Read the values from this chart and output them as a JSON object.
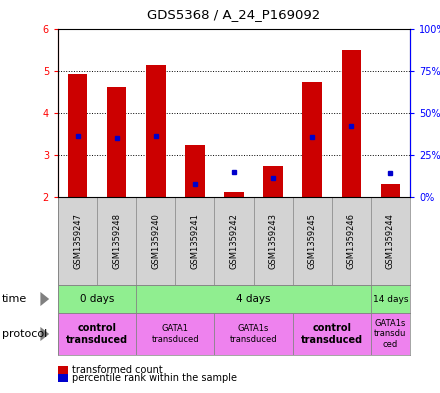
{
  "title": "GDS5368 / A_24_P169092",
  "samples": [
    "GSM1359247",
    "GSM1359248",
    "GSM1359240",
    "GSM1359241",
    "GSM1359242",
    "GSM1359243",
    "GSM1359245",
    "GSM1359246",
    "GSM1359244"
  ],
  "bar_bottoms": [
    2.0,
    2.0,
    2.0,
    2.0,
    2.0,
    2.0,
    2.0,
    2.0,
    2.0
  ],
  "bar_tops": [
    4.92,
    4.61,
    5.15,
    3.23,
    2.13,
    2.75,
    4.73,
    5.51,
    2.32
  ],
  "blue_dots": [
    3.45,
    3.4,
    3.45,
    2.3,
    2.6,
    2.45,
    3.42,
    3.68,
    2.57
  ],
  "bar_color": "#cc0000",
  "dot_color": "#0000cc",
  "ylim": [
    2.0,
    6.0
  ],
  "y_right_ticks": [
    2.0,
    3.0,
    4.0,
    5.0,
    6.0
  ],
  "y_right_labels": [
    "0%",
    "25%",
    "50%",
    "75%",
    "100%"
  ],
  "y_left_ticks": [
    2.0,
    3.0,
    4.0,
    5.0,
    6.0
  ],
  "time_groups": [
    {
      "label": "0 days",
      "start": 0,
      "end": 2,
      "color": "#90ee90"
    },
    {
      "label": "4 days",
      "start": 2,
      "end": 8,
      "color": "#90ee90"
    },
    {
      "label": "14 days",
      "start": 8,
      "end": 9,
      "color": "#90ee90"
    }
  ],
  "protocol_groups": [
    {
      "label": "control\ntransduced",
      "start": 0,
      "end": 2,
      "color": "#ee82ee",
      "bold": true
    },
    {
      "label": "GATA1\ntransduced",
      "start": 2,
      "end": 4,
      "color": "#ee82ee",
      "bold": false
    },
    {
      "label": "GATA1s\ntransduced",
      "start": 4,
      "end": 6,
      "color": "#ee82ee",
      "bold": false
    },
    {
      "label": "control\ntransduced",
      "start": 6,
      "end": 8,
      "color": "#ee82ee",
      "bold": true
    },
    {
      "label": "GATA1s\ntransdu\nced",
      "start": 8,
      "end": 9,
      "color": "#ee82ee",
      "bold": false
    }
  ],
  "legend_red_label": "transformed count",
  "legend_blue_label": "percentile rank within the sample",
  "sample_bg": "#d3d3d3",
  "plot_bg": "#ffffff",
  "arrow_color": "#808080"
}
